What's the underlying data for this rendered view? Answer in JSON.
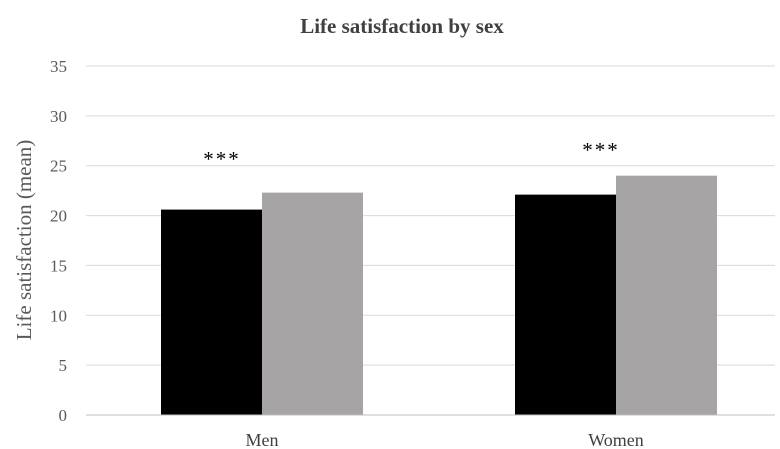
{
  "chart_data": {
    "type": "bar",
    "title": "Life satisfaction by sex",
    "xlabel": "",
    "ylabel": "Life satisfaction (mean)",
    "categories": [
      "Men",
      "Women"
    ],
    "series": [
      {
        "values": [
          20.6,
          22.1
        ],
        "color": "#000000"
      },
      {
        "values": [
          22.3,
          24.0
        ],
        "color": "#a6a4a4"
      }
    ],
    "ylim": [
      0,
      35
    ],
    "yticks": [
      0,
      5,
      10,
      15,
      20,
      25,
      30,
      35
    ],
    "annotations": [
      "***",
      "***"
    ],
    "grid": true,
    "legend": "none"
  }
}
